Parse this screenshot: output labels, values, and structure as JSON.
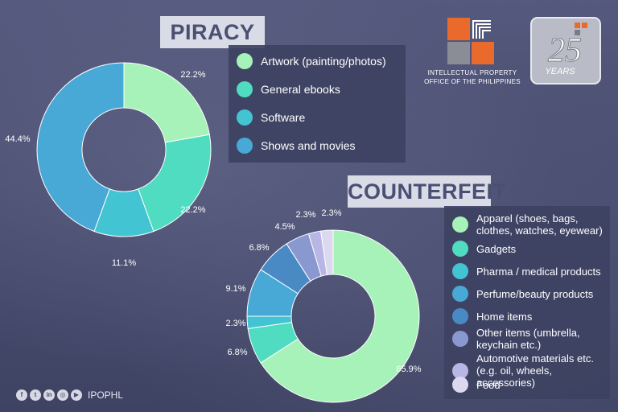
{
  "chart_data": [
    {
      "type": "pie",
      "title": "PIRACY",
      "labels": [
        "Artwork (painting/photos)",
        "General ebooks",
        "Software",
        "Shows and movies"
      ],
      "values": [
        22.2,
        22.2,
        11.1,
        44.4
      ],
      "value_labels": [
        "22.2%",
        "22.2%",
        "11.1%",
        "44.4%"
      ],
      "colors": [
        "#a6f2b8",
        "#50dcc0",
        "#42c4d2",
        "#48a8d6"
      ],
      "donut": true
    },
    {
      "type": "pie",
      "title": "COUNTERFEIT",
      "labels": [
        "Apparel (shoes, bags, clothes, watches, eyewear)",
        "Gadgets",
        "Pharma / medical products",
        "Perfume/beauty products",
        "Home items",
        "Other items (umbrella, keychain etc.)",
        "Automotive materials etc. (e.g. oil, wheels, accessories)",
        "Food"
      ],
      "values": [
        65.9,
        6.8,
        2.3,
        9.1,
        6.8,
        4.5,
        2.3,
        2.3
      ],
      "value_labels": [
        "65.9%",
        "6.8%",
        "2.3%",
        "9.1%",
        "6.8%",
        "4.5%",
        "2.3%",
        "2.3%"
      ],
      "colors": [
        "#a6f2b8",
        "#50dcc0",
        "#42c4d2",
        "#48a8d6",
        "#4a8ac4",
        "#8a98d0",
        "#b8b6e4",
        "#dcd8f0"
      ],
      "donut": true
    }
  ],
  "piracy": {
    "title": "PIRACY",
    "legend": [
      {
        "label": "Artwork (painting/photos)",
        "color": "#a6f2b8"
      },
      {
        "label": "General ebooks",
        "color": "#50dcc0"
      },
      {
        "label": "Software",
        "color": "#42c4d2"
      },
      {
        "label": "Shows and movies",
        "color": "#48a8d6"
      }
    ]
  },
  "counterfeit": {
    "title": "COUNTERFEIT",
    "legend": [
      {
        "line1": "Apparel (shoes, bags,",
        "line2": "clothes, watches, eyewear)",
        "color": "#a6f2b8"
      },
      {
        "line1": "Gadgets",
        "line2": "",
        "color": "#50dcc0"
      },
      {
        "line1": "Pharma / medical products",
        "line2": "",
        "color": "#42c4d2"
      },
      {
        "line1": "Perfume/beauty products",
        "line2": "",
        "color": "#48a8d6"
      },
      {
        "line1": "Home items",
        "line2": "",
        "color": "#4a8ac4"
      },
      {
        "line1": "Other items (umbrella,",
        "line2": "keychain etc.)",
        "color": "#8a98d0"
      },
      {
        "line1": "Automotive materials etc.",
        "line2": "(e.g. oil, wheels, accessories)",
        "color": "#b8b6e4"
      },
      {
        "line1": "Food",
        "line2": "",
        "color": "#dcd8f0"
      }
    ]
  },
  "logos": {
    "ipo_line1": "INTELLECTUAL PROPERTY",
    "ipo_line2": "OFFICE OF THE PHILIPPINES",
    "anniv_number": "25",
    "anniv_word": "YEARS"
  },
  "footer": {
    "social_icons": [
      "facebook-icon",
      "twitter-icon",
      "linkedin-icon",
      "instagram-icon",
      "youtube-icon"
    ],
    "handle": "IPOPHL"
  }
}
